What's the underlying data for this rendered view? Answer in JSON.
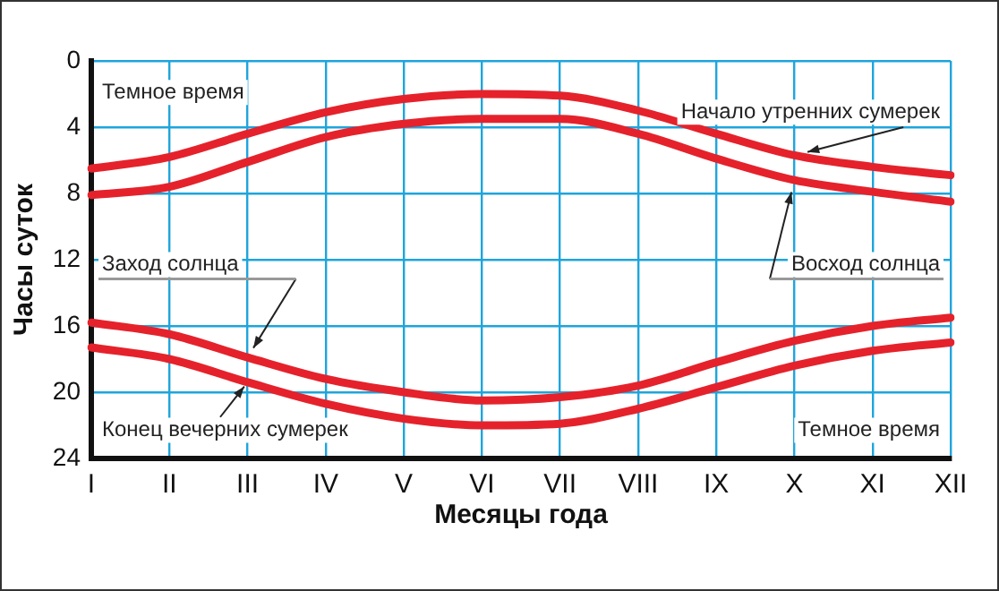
{
  "chart_data": {
    "type": "line",
    "xlabel": "Месяцы года",
    "ylabel": "Часы суток",
    "categories": [
      "I",
      "II",
      "III",
      "IV",
      "V",
      "VI",
      "VII",
      "VIII",
      "IX",
      "X",
      "XI",
      "XII"
    ],
    "series": [
      {
        "name": "Начало утренних сумерек",
        "color": "#e5222b",
        "values": [
          6.5,
          5.8,
          4.4,
          3.1,
          2.3,
          2.0,
          2.1,
          3.0,
          4.4,
          5.7,
          6.4,
          6.9
        ]
      },
      {
        "name": "Восход солнца",
        "color": "#e5222b",
        "values": [
          8.1,
          7.6,
          6.1,
          4.6,
          3.8,
          3.5,
          3.5,
          4.4,
          5.9,
          7.2,
          7.9,
          8.5
        ]
      },
      {
        "name": "Заход солнца",
        "color": "#e5222b",
        "values": [
          15.8,
          16.5,
          17.9,
          19.2,
          20.0,
          20.5,
          20.3,
          19.6,
          18.2,
          16.9,
          16.0,
          15.5
        ]
      },
      {
        "name": "Конец вечерних сумерек",
        "color": "#e5222b",
        "values": [
          17.3,
          18.0,
          19.4,
          20.7,
          21.6,
          22.0,
          21.9,
          21.0,
          19.7,
          18.4,
          17.5,
          17.0
        ]
      }
    ],
    "ylim": [
      24,
      0
    ],
    "yticks": [
      0,
      4,
      8,
      12,
      16,
      20,
      24
    ],
    "grid": true,
    "marker": "none",
    "line_style": "solid",
    "annotations": [
      "Темное время",
      "Темное время"
    ]
  }
}
